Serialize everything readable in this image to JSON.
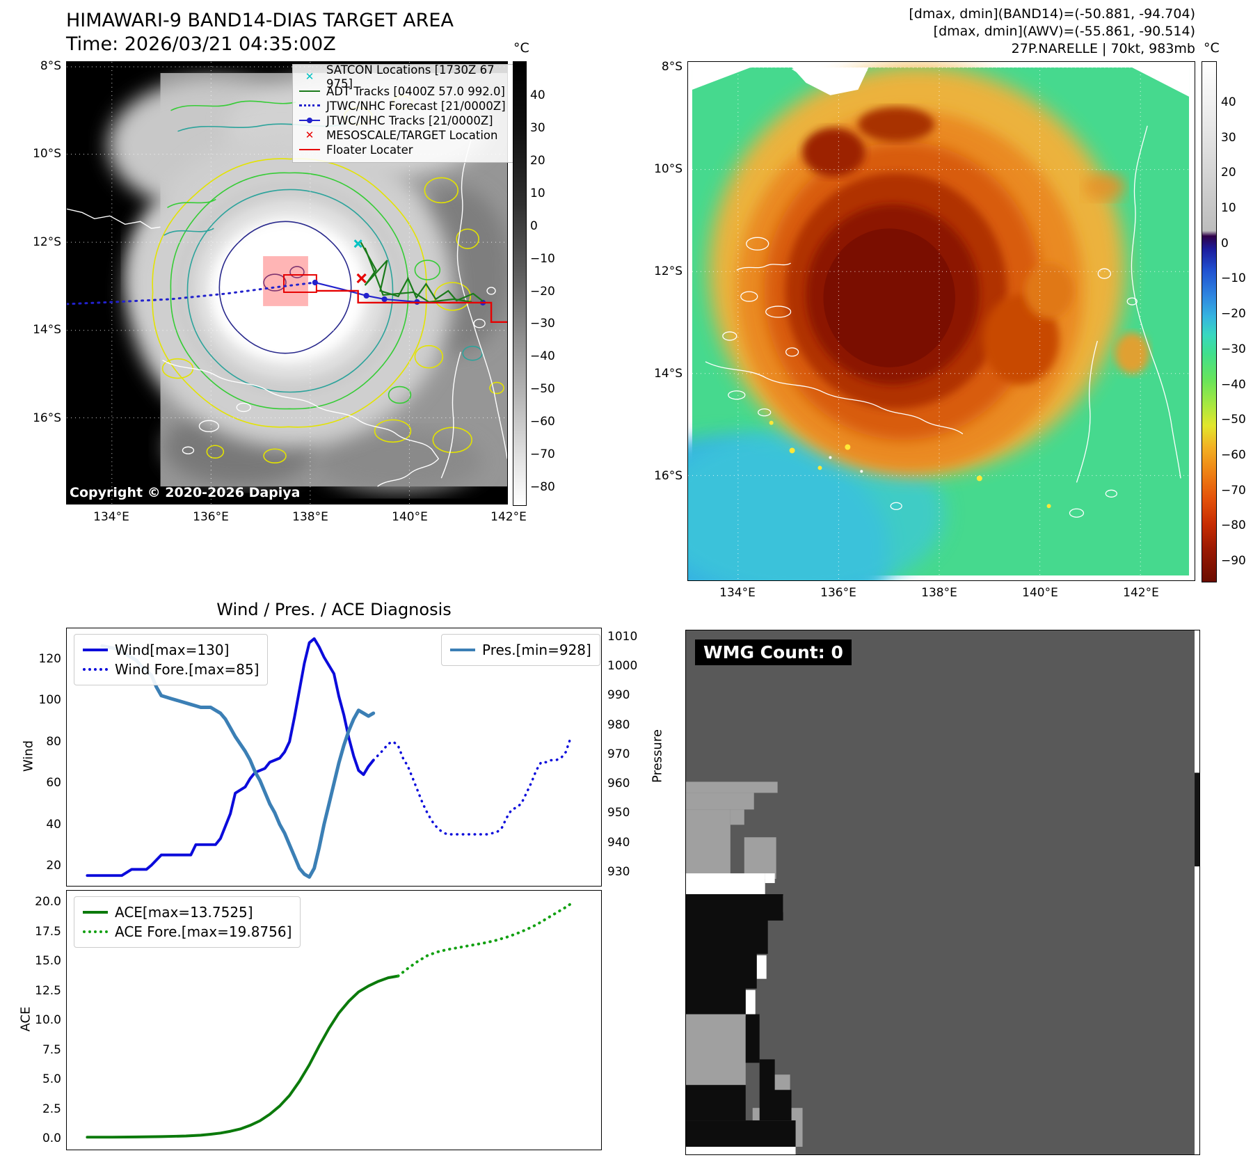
{
  "panel_band14": {
    "title": "HIMAWARI-9 BAND14-DIAS TARGET AREA",
    "time_line": "Time: 2026/03/21 04:35:00Z",
    "copyright": "Copyright © 2020-2026 Dapiya",
    "x_ticks": [
      "134°E",
      "136°E",
      "138°E",
      "140°E",
      "142°E"
    ],
    "y_ticks": [
      "8°S",
      "10°S",
      "12°S",
      "14°S",
      "16°S"
    ],
    "colorbar": {
      "unit": "°C",
      "ticks": [
        "40",
        "30",
        "20",
        "10",
        "0",
        "−10",
        "−20",
        "−30",
        "−40",
        "−50",
        "−60",
        "−70",
        "−80"
      ]
    },
    "legend_items": [
      {
        "label": "SATCON Locations [1730Z 67 975]",
        "marker": "cyan-x"
      },
      {
        "label": "ADT Tracks [0400Z 57.0 992.0]",
        "marker": "green-line"
      },
      {
        "label": "JTWC/NHC Forecast [21/0000Z]",
        "marker": "blue-dotted"
      },
      {
        "label": "JTWC/NHC Tracks [21/0000Z]",
        "marker": "blue-line-dot"
      },
      {
        "label": "MESOSCALE/TARGET Location",
        "marker": "red-x"
      },
      {
        "label": "Floater Locater",
        "marker": "red-line"
      }
    ]
  },
  "panel_awv": {
    "header_lines": [
      "[dmax, dmin](BAND14)=(-50.881, -94.704)",
      "[dmax, dmin](AWV)=(-55.861, -90.514)",
      "27P.NARELLE | 70kt, 983mb"
    ],
    "x_ticks": [
      "134°E",
      "136°E",
      "138°E",
      "140°E",
      "142°E"
    ],
    "y_ticks": [
      "8°S",
      "10°S",
      "12°S",
      "14°S",
      "16°S"
    ],
    "colorbar": {
      "unit": "°C",
      "ticks": [
        "40",
        "30",
        "20",
        "10",
        "0",
        "−10",
        "−20",
        "−30",
        "−40",
        "−50",
        "−60",
        "−70",
        "−80",
        "−90"
      ]
    }
  },
  "diagnosis": {
    "title": "Wind / Pres. / ACE Diagnosis"
  },
  "wmg": {
    "label": "WMG Count: 0"
  },
  "colors": {
    "wind_blue": "#0b0bdb",
    "pressure_steelblue": "#3b7fb5",
    "ace_green": "#0b7a0b",
    "ace_forecast_green": "#12a012",
    "track_blue": "#2222cc",
    "adt_green": "#1a7a1a",
    "floater_red": "#e60000",
    "satcon_cyan": "#00c2c2",
    "target_red": "#e60000"
  },
  "chart_data": [
    {
      "type": "line",
      "title": "Wind / Pres. / ACE Diagnosis",
      "x_range": [
        0,
        100
      ],
      "left_axis": {
        "label": "Wind",
        "ticks": [
          "20",
          "40",
          "60",
          "80",
          "100",
          "120"
        ],
        "lim": [
          10,
          135
        ]
      },
      "right_axis": {
        "label": "Pressure",
        "ticks": [
          "930",
          "940",
          "950",
          "960",
          "970",
          "980",
          "990",
          "1000",
          "1010"
        ],
        "lim": [
          925,
          1013
        ]
      },
      "series": [
        {
          "name": "Wind[max=130]",
          "axis": "left",
          "style": "solid",
          "color": "#0b0bdb",
          "width": 4,
          "points": [
            [
              0,
              15
            ],
            [
              5,
              15
            ],
            [
              7,
              15
            ],
            [
              9,
              18
            ],
            [
              12,
              18
            ],
            [
              13,
              20
            ],
            [
              15,
              25
            ],
            [
              19,
              25
            ],
            [
              21,
              25
            ],
            [
              22,
              30
            ],
            [
              26,
              30
            ],
            [
              27,
              33
            ],
            [
              29,
              45
            ],
            [
              30,
              55
            ],
            [
              32,
              58
            ],
            [
              33,
              62
            ],
            [
              34,
              65
            ],
            [
              36,
              67
            ],
            [
              37,
              70
            ],
            [
              39,
              72
            ],
            [
              40,
              75
            ],
            [
              41,
              80
            ],
            [
              42,
              92
            ],
            [
              43,
              105
            ],
            [
              44,
              118
            ],
            [
              45,
              128
            ],
            [
              46,
              130
            ],
            [
              47,
              126
            ],
            [
              48,
              121
            ],
            [
              50,
              113
            ],
            [
              51,
              102
            ],
            [
              52,
              93
            ],
            [
              53,
              82
            ],
            [
              54,
              73
            ],
            [
              55,
              66
            ],
            [
              56,
              64
            ],
            [
              57,
              68
            ],
            [
              58,
              71
            ]
          ]
        },
        {
          "name": "Wind Fore.[max=85]",
          "axis": "left",
          "style": "dotted",
          "color": "#0b0bdb",
          "width": 3.5,
          "points": [
            [
              58,
              71
            ],
            [
              60,
              76
            ],
            [
              61,
              79
            ],
            [
              62,
              80
            ],
            [
              63,
              78
            ],
            [
              64,
              72
            ],
            [
              65,
              68
            ],
            [
              66,
              62
            ],
            [
              67,
              56
            ],
            [
              68,
              50
            ],
            [
              69,
              45
            ],
            [
              70,
              41
            ],
            [
              71,
              38
            ],
            [
              72,
              36
            ],
            [
              73,
              35
            ],
            [
              75,
              35
            ],
            [
              77,
              35
            ],
            [
              79,
              35
            ],
            [
              81,
              35
            ],
            [
              83,
              36
            ],
            [
              84,
              38
            ],
            [
              85,
              43
            ],
            [
              86,
              47
            ],
            [
              87,
              48
            ],
            [
              88,
              50
            ],
            [
              89,
              55
            ],
            [
              90,
              60
            ],
            [
              91,
              66
            ],
            [
              92,
              70
            ],
            [
              93,
              70
            ],
            [
              94,
              71
            ],
            [
              95,
              71
            ],
            [
              96,
              72
            ],
            [
              97,
              75
            ],
            [
              98,
              82
            ]
          ]
        },
        {
          "name": "Pres.[min=928]",
          "axis": "right",
          "style": "solid",
          "color": "#3b7fb5",
          "width": 5,
          "points": [
            [
              3,
              1007
            ],
            [
              6,
              1006
            ],
            [
              8,
              1004
            ],
            [
              10,
              1002
            ],
            [
              11,
              1000
            ],
            [
              13,
              997
            ],
            [
              14,
              993
            ],
            [
              15,
              990
            ],
            [
              17,
              989
            ],
            [
              19,
              988
            ],
            [
              21,
              987
            ],
            [
              23,
              986
            ],
            [
              25,
              986
            ],
            [
              26,
              985
            ],
            [
              27,
              984
            ],
            [
              28,
              982
            ],
            [
              29,
              979
            ],
            [
              30,
              976
            ],
            [
              32,
              971
            ],
            [
              33,
              968
            ],
            [
              34,
              964
            ],
            [
              35,
              961
            ],
            [
              36,
              957
            ],
            [
              37,
              953
            ],
            [
              38,
              950
            ],
            [
              39,
              946
            ],
            [
              40,
              943
            ],
            [
              41,
              939
            ],
            [
              42,
              935
            ],
            [
              43,
              931
            ],
            [
              44,
              929
            ],
            [
              45,
              928
            ],
            [
              46,
              931
            ],
            [
              47,
              938
            ],
            [
              48,
              946
            ],
            [
              49,
              953
            ],
            [
              50,
              960
            ],
            [
              51,
              967
            ],
            [
              52,
              973
            ],
            [
              53,
              978
            ],
            [
              54,
              982
            ],
            [
              55,
              985
            ],
            [
              56,
              984
            ],
            [
              57,
              983
            ],
            [
              58,
              984
            ]
          ]
        }
      ]
    },
    {
      "type": "line",
      "x_range": [
        0,
        100
      ],
      "left_axis": {
        "label": "ACE",
        "ticks": [
          "0.0",
          "2.5",
          "5.0",
          "7.5",
          "10.0",
          "12.5",
          "15.0",
          "17.5",
          "20.0"
        ],
        "lim": [
          -1,
          21
        ]
      },
      "series": [
        {
          "name": "ACE[max=13.7525]",
          "axis": "left",
          "style": "solid",
          "color": "#0b7a0b",
          "width": 4,
          "points": [
            [
              0,
              0.05
            ],
            [
              5,
              0.05
            ],
            [
              10,
              0.07
            ],
            [
              15,
              0.1
            ],
            [
              20,
              0.15
            ],
            [
              23,
              0.22
            ],
            [
              25,
              0.3
            ],
            [
              27,
              0.4
            ],
            [
              29,
              0.55
            ],
            [
              31,
              0.75
            ],
            [
              33,
              1.05
            ],
            [
              35,
              1.45
            ],
            [
              37,
              2.0
            ],
            [
              39,
              2.7
            ],
            [
              41,
              3.6
            ],
            [
              43,
              4.8
            ],
            [
              45,
              6.2
            ],
            [
              47,
              7.8
            ],
            [
              49,
              9.3
            ],
            [
              51,
              10.6
            ],
            [
              53,
              11.6
            ],
            [
              55,
              12.4
            ],
            [
              57,
              12.9
            ],
            [
              59,
              13.3
            ],
            [
              61,
              13.6
            ],
            [
              63,
              13.75
            ]
          ]
        },
        {
          "name": "ACE Fore.[max=19.8756]",
          "axis": "left",
          "style": "dotted",
          "color": "#12a012",
          "width": 4,
          "points": [
            [
              63,
              13.75
            ],
            [
              65,
              14.4
            ],
            [
              67,
              15.0
            ],
            [
              69,
              15.5
            ],
            [
              71,
              15.8
            ],
            [
              73,
              16.0
            ],
            [
              75,
              16.15
            ],
            [
              77,
              16.3
            ],
            [
              79,
              16.45
            ],
            [
              81,
              16.6
            ],
            [
              83,
              16.8
            ],
            [
              85,
              17.05
            ],
            [
              87,
              17.35
            ],
            [
              89,
              17.7
            ],
            [
              91,
              18.1
            ],
            [
              93,
              18.6
            ],
            [
              95,
              19.1
            ],
            [
              97,
              19.6
            ],
            [
              98,
              19.88
            ]
          ]
        }
      ]
    }
  ]
}
